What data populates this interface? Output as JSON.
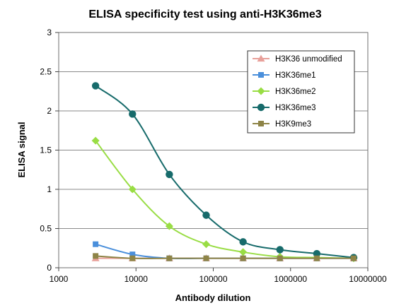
{
  "chart_data": {
    "type": "scatter",
    "title": "ELISA specificity test using anti-H3K36me3",
    "xlabel": "Antibody dilution",
    "ylabel": "ELISA signal",
    "xscale": "log",
    "xlim": [
      1000,
      10000000
    ],
    "ylim": [
      0,
      3
    ],
    "xticks": [
      "1000",
      "10000",
      "100000",
      "1000000",
      "10000000"
    ],
    "yticks": [
      "0",
      "0.5",
      "1",
      "1.5",
      "2",
      "2.5",
      "3"
    ],
    "grid": "horizontal",
    "legend_position": "top-right",
    "x": [
      3000,
      9000,
      27000,
      81000,
      243000,
      729000,
      2187000,
      6561000
    ],
    "series": [
      {
        "name": "H3K36 unmodified",
        "color": "#E8A09A",
        "marker": "triangle",
        "values": [
          0.12,
          0.12,
          0.12,
          0.12,
          0.12,
          0.12,
          0.12,
          0.12
        ]
      },
      {
        "name": "H3K36me1",
        "color": "#4A8FDB",
        "marker": "square",
        "values": [
          0.3,
          0.17,
          0.12,
          0.12,
          0.12,
          0.12,
          0.12,
          0.12
        ]
      },
      {
        "name": "H3K36me2",
        "color": "#99DD44",
        "marker": "diamond",
        "values": [
          1.62,
          1.0,
          0.53,
          0.3,
          0.2,
          0.14,
          0.13,
          0.12
        ]
      },
      {
        "name": "H3K36me3",
        "color": "#176B6B",
        "marker": "circle",
        "values": [
          2.32,
          1.96,
          1.19,
          0.67,
          0.33,
          0.23,
          0.18,
          0.13
        ]
      },
      {
        "name": "H3K9me3",
        "color": "#8E8447",
        "marker": "square",
        "values": [
          0.15,
          0.12,
          0.12,
          0.12,
          0.12,
          0.12,
          0.12,
          0.12
        ]
      }
    ]
  }
}
